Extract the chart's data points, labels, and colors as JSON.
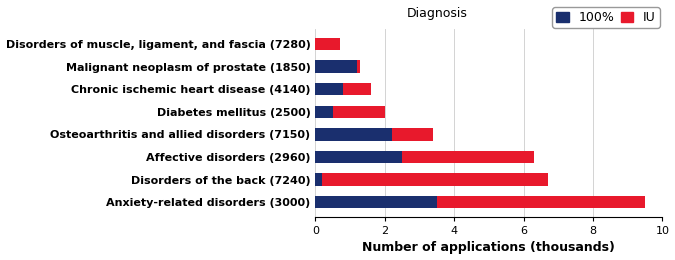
{
  "categories": [
    "Disorders of muscle, ligament, and fascia (7280)",
    "Malignant neoplasm of prostate (1850)",
    "Chronic ischemic heart disease (4140)",
    "Diabetes mellitus (2500)",
    "Osteoarthritis and allied disorders (7150)",
    "Affective disorders (2960)",
    "Disorders of the back (7240)",
    "Anxiety-related disorders (3000)"
  ],
  "values_100pct": [
    0.0,
    1.2,
    0.8,
    0.5,
    2.2,
    2.5,
    0.2,
    3.5
  ],
  "values_IU": [
    0.7,
    0.1,
    0.8,
    1.5,
    1.2,
    3.8,
    6.5,
    6.0
  ],
  "color_100pct": "#1a2f6e",
  "color_IU": "#e8192c",
  "title": "Diagnosis",
  "xlabel": "Number of applications (thousands)",
  "legend_labels": [
    "100%",
    "IU"
  ],
  "xlim": [
    0,
    10
  ],
  "xticks": [
    0,
    2,
    4,
    6,
    8,
    10
  ],
  "bar_height": 0.55,
  "title_fontsize": 9,
  "axis_label_fontsize": 9,
  "tick_fontsize": 8,
  "legend_fontsize": 9
}
